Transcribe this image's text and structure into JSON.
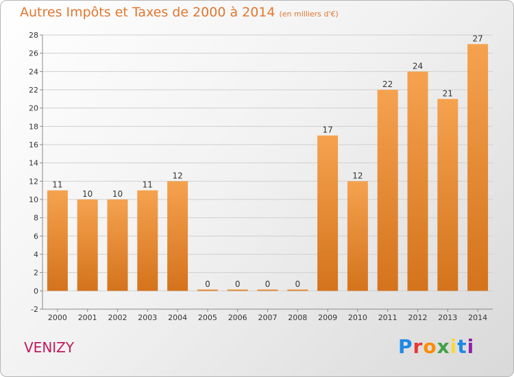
{
  "header": {
    "title": "Autres Impôts et Taxes de 2000 à 2014",
    "unit": "(en milliers d'€)"
  },
  "footer": {
    "location": "VENIZY",
    "logo_text": "Proxiti",
    "logo_colors": [
      "#1e88e5",
      "#e53935",
      "#fb8c00",
      "#43a047",
      "#fdd835",
      "#1e88e5",
      "#8e24aa"
    ]
  },
  "colors": {
    "bar_light": "#f5a24f",
    "bar_dark": "#d4731c",
    "grid": "#cfcfcf",
    "axis": "#888888",
    "title": "#e0772f",
    "location": "#c2185b"
  },
  "chart_data": {
    "type": "bar",
    "title": "Autres Impôts et Taxes de 2000 à 2014",
    "subtitle": "(en milliers d'€)",
    "xlabel": "",
    "ylabel": "",
    "categories": [
      "2000",
      "2001",
      "2002",
      "2003",
      "2004",
      "2005",
      "2006",
      "2007",
      "2008",
      "2009",
      "2010",
      "2011",
      "2012",
      "2013",
      "2014"
    ],
    "values": [
      11,
      10,
      10,
      11,
      12,
      0,
      0,
      0,
      0,
      17,
      12,
      22,
      24,
      21,
      27
    ],
    "ylim": [
      -2,
      28
    ],
    "yticks": [
      -2,
      0,
      2,
      4,
      6,
      8,
      10,
      12,
      14,
      16,
      18,
      20,
      22,
      24,
      26,
      28
    ],
    "grid": true,
    "data_labels": true
  }
}
